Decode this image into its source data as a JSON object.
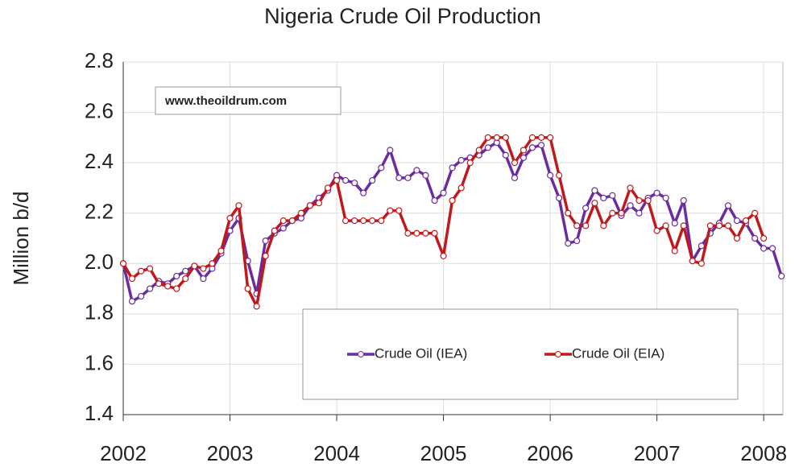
{
  "chart_data": {
    "type": "line",
    "title": "Nigeria Crude Oil Production",
    "ylabel": "Million b/d",
    "watermark": "www.theoildrum.com",
    "x": [
      2002.0,
      2002.083,
      2002.167,
      2002.25,
      2002.333,
      2002.417,
      2002.5,
      2002.583,
      2002.667,
      2002.75,
      2002.833,
      2002.917,
      2003.0,
      2003.083,
      2003.167,
      2003.25,
      2003.333,
      2003.417,
      2003.5,
      2003.583,
      2003.667,
      2003.75,
      2003.833,
      2003.917,
      2004.0,
      2004.083,
      2004.167,
      2004.25,
      2004.333,
      2004.417,
      2004.5,
      2004.583,
      2004.667,
      2004.75,
      2004.833,
      2004.917,
      2005.0,
      2005.083,
      2005.167,
      2005.25,
      2005.333,
      2005.417,
      2005.5,
      2005.583,
      2005.667,
      2005.75,
      2005.833,
      2005.917,
      2006.0,
      2006.083,
      2006.167,
      2006.25,
      2006.333,
      2006.417,
      2006.5,
      2006.583,
      2006.667,
      2006.75,
      2006.833,
      2006.917,
      2007.0,
      2007.083,
      2007.167,
      2007.25,
      2007.333,
      2007.417,
      2007.5,
      2007.583,
      2007.667,
      2007.75,
      2007.833,
      2007.917,
      2008.0,
      2008.083,
      2008.167
    ],
    "series": [
      {
        "name": "Crude Oil (IEA)",
        "color": "#6a2ca0",
        "values": [
          2.0,
          1.85,
          1.87,
          1.9,
          1.93,
          1.92,
          1.95,
          1.97,
          1.99,
          1.94,
          1.98,
          2.04,
          2.13,
          2.18,
          2.01,
          1.88,
          2.09,
          2.12,
          2.14,
          2.17,
          2.18,
          2.23,
          2.26,
          2.29,
          2.35,
          2.33,
          2.32,
          2.28,
          2.33,
          2.38,
          2.45,
          2.34,
          2.34,
          2.37,
          2.35,
          2.25,
          2.28,
          2.38,
          2.41,
          2.42,
          2.43,
          2.46,
          2.48,
          2.43,
          2.34,
          2.42,
          2.46,
          2.47,
          2.35,
          2.26,
          2.08,
          2.09,
          2.22,
          2.29,
          2.26,
          2.27,
          2.19,
          2.23,
          2.2,
          2.26,
          2.28,
          2.26,
          2.16,
          2.25,
          2.01,
          2.07,
          2.12,
          2.16,
          2.23,
          2.17,
          2.16,
          2.1,
          2.06,
          2.06,
          1.95
        ]
      },
      {
        "name": "Crude Oil (EIA)",
        "color": "#c0191c",
        "values": [
          2.0,
          1.94,
          1.97,
          1.98,
          1.92,
          1.91,
          1.9,
          1.94,
          1.99,
          1.98,
          2.0,
          2.05,
          2.18,
          2.23,
          1.9,
          1.83,
          2.03,
          2.13,
          2.17,
          2.17,
          2.2,
          2.23,
          2.24,
          2.3,
          2.33,
          2.17,
          2.17,
          2.17,
          2.17,
          2.17,
          2.21,
          2.21,
          2.12,
          2.12,
          2.12,
          2.12,
          2.03,
          2.25,
          2.3,
          2.4,
          2.45,
          2.5,
          2.5,
          2.5,
          2.4,
          2.45,
          2.5,
          2.5,
          2.5,
          2.35,
          2.2,
          2.15,
          2.15,
          2.24,
          2.15,
          2.2,
          2.2,
          2.3,
          2.25,
          2.25,
          2.13,
          2.15,
          2.05,
          2.15,
          2.01,
          2.0,
          2.15,
          2.15,
          2.15,
          2.1,
          2.17,
          2.2,
          2.1,
          null,
          null
        ]
      }
    ],
    "xlim": [
      2002,
      2008.18
    ],
    "xticks": [
      2002,
      2003,
      2004,
      2005,
      2006,
      2007,
      2008
    ],
    "ylim": [
      1.4,
      2.8
    ],
    "yticks": [
      1.4,
      1.6,
      1.8,
      {
        "value": 2,
        "label": "2.0"
      },
      2.2,
      2.4,
      2.6,
      2.8
    ],
    "grid": true,
    "legend": "lower right"
  }
}
